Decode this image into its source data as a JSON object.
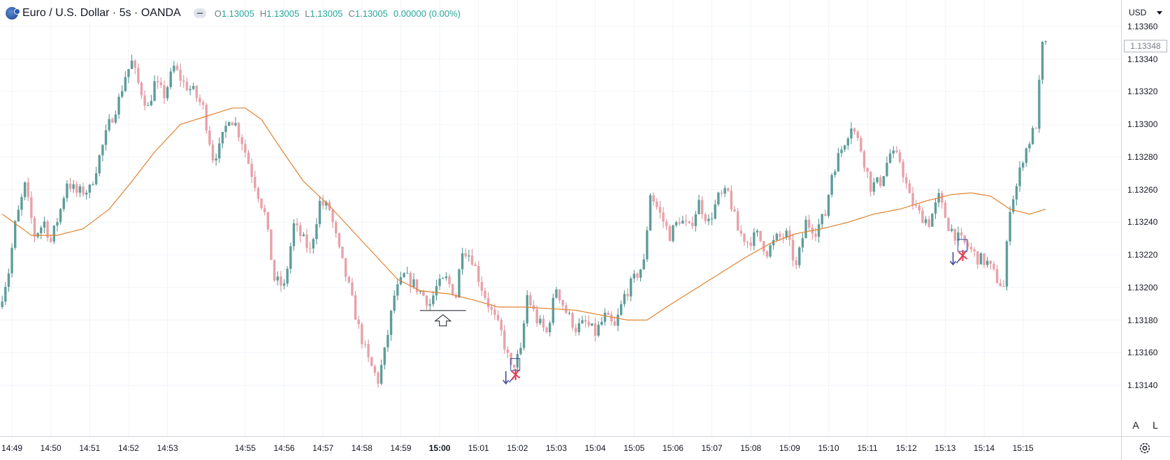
{
  "legend": {
    "title": "Euro / U.S. Dollar · 5s · OANDA",
    "o_label": "O",
    "o_value": "1.13005",
    "h_label": "H",
    "h_value": "1.13005",
    "l_label": "L",
    "l_value": "1.13005",
    "c_label": "C",
    "c_value": "1.13005",
    "change": "0.00000 (0.00%)",
    "icon": "eur-usd-flag-icon"
  },
  "currency": "USD",
  "buttons": {
    "auto": "A",
    "log": "L",
    "settings_icon": "gear-icon"
  },
  "colors": {
    "up": "#5d9d9a",
    "down": "#e8a1a8",
    "ma": "#e0822e",
    "grid": "#f0f3fa"
  },
  "price_axis": {
    "labels": [
      "1.13360",
      "1.13340",
      "1.13320",
      "1.13300",
      "1.13280",
      "1.13260",
      "1.13240",
      "1.13220",
      "1.13200",
      "1.13180",
      "1.13160",
      "1.13140"
    ],
    "last_price": "1.13348"
  },
  "time_axis": {
    "labels": [
      "14:49",
      "14:50",
      "14:51",
      "14:52",
      "14:53",
      "14:55",
      "14:56",
      "14:57",
      "14:58",
      "14:59",
      "15:00",
      "15:01",
      "15:02",
      "15:03",
      "15:04",
      "15:05",
      "15:06",
      "15:07",
      "15:08",
      "15:09",
      "15:10",
      "15:11",
      "15:12",
      "15:13",
      "15:14",
      "15:15"
    ],
    "bold": "15:00"
  },
  "chart_data": {
    "type": "candlestick",
    "symbol": "EURUSD",
    "interval": "5s",
    "ylim": [
      1.13134,
      1.13368
    ],
    "x_range": [
      "14:48:47",
      "14:15:35+60"
    ],
    "anchors": [
      [
        "14:48:45",
        1.13188
      ],
      [
        "14:49:00",
        1.1321
      ],
      [
        "14:49:10",
        1.13238
      ],
      [
        "14:49:25",
        1.13262
      ],
      [
        "14:49:40",
        1.13232
      ],
      [
        "14:49:55",
        1.1324
      ],
      [
        "14:50:05",
        1.13228
      ],
      [
        "14:50:20",
        1.13248
      ],
      [
        "14:50:30",
        1.13265
      ],
      [
        "14:50:45",
        1.13258
      ],
      [
        "14:51:05",
        1.1326
      ],
      [
        "14:51:20",
        1.1328
      ],
      [
        "14:51:35",
        1.133
      ],
      [
        "14:51:50",
        1.13315
      ],
      [
        "14:52:00",
        1.1333
      ],
      [
        "14:52:10",
        1.13338
      ],
      [
        "14:52:20",
        1.13325
      ],
      [
        "14:52:35",
        1.1331
      ],
      [
        "14:52:45",
        1.13325
      ],
      [
        "14:53:00",
        1.13318
      ],
      [
        "14:53:15",
        1.13335
      ],
      [
        "14:53:30",
        1.13325
      ],
      [
        "14:53:45",
        1.1332
      ],
      [
        "14:54:00",
        1.1331
      ],
      [
        "14:54:05",
        1.133
      ],
      [
        "14:54:15",
        1.1328
      ],
      [
        "14:54:25",
        1.13285
      ],
      [
        "14:54:40",
        1.13305
      ],
      [
        "14:54:50",
        1.133
      ],
      [
        "14:55:00",
        1.1329
      ],
      [
        "14:55:15",
        1.1327
      ],
      [
        "14:55:35",
        1.13245
      ],
      [
        "14:55:50",
        1.13205
      ],
      [
        "14:56:05",
        1.132
      ],
      [
        "14:56:20",
        1.13238
      ],
      [
        "14:56:30",
        1.13232
      ],
      [
        "14:56:45",
        1.13222
      ],
      [
        "14:57:00",
        1.13252
      ],
      [
        "14:57:15",
        1.13248
      ],
      [
        "14:57:30",
        1.13222
      ],
      [
        "14:57:45",
        1.132
      ],
      [
        "14:58:00",
        1.13175
      ],
      [
        "14:58:15",
        1.13155
      ],
      [
        "14:58:30",
        1.13143
      ],
      [
        "14:58:40",
        1.1316
      ],
      [
        "14:58:55",
        1.13195
      ],
      [
        "14:59:10",
        1.13207
      ],
      [
        "14:59:25",
        1.13202
      ],
      [
        "14:59:40",
        1.13195
      ],
      [
        "14:59:50",
        1.1319
      ],
      [
        "15:00:00",
        1.132
      ],
      [
        "15:00:15",
        1.13205
      ],
      [
        "15:00:30",
        1.13195
      ],
      [
        "15:00:40",
        1.13225
      ],
      [
        "15:00:55",
        1.13218
      ],
      [
        "15:01:10",
        1.132
      ],
      [
        "15:01:25",
        1.13185
      ],
      [
        "15:01:40",
        1.13172
      ],
      [
        "15:01:55",
        1.1315
      ],
      [
        "15:02:10",
        1.1316
      ],
      [
        "15:02:20",
        1.13195
      ],
      [
        "15:02:35",
        1.1318
      ],
      [
        "15:02:50",
        1.13172
      ],
      [
        "15:03:05",
        1.132
      ],
      [
        "15:03:20",
        1.13185
      ],
      [
        "15:03:35",
        1.13175
      ],
      [
        "15:03:50",
        1.13178
      ],
      [
        "15:04:05",
        1.13172
      ],
      [
        "15:04:20",
        1.13182
      ],
      [
        "15:04:35",
        1.13175
      ],
      [
        "15:04:50",
        1.13195
      ],
      [
        "15:05:05",
        1.13205
      ],
      [
        "15:05:20",
        1.13215
      ],
      [
        "15:05:30",
        1.13258
      ],
      [
        "15:05:45",
        1.13245
      ],
      [
        "15:06:00",
        1.13232
      ],
      [
        "15:06:15",
        1.13242
      ],
      [
        "15:06:30",
        1.13236
      ],
      [
        "15:06:45",
        1.13252
      ],
      [
        "15:07:00",
        1.1324
      ],
      [
        "15:07:15",
        1.13255
      ],
      [
        "15:07:30",
        1.13258
      ],
      [
        "15:07:45",
        1.13235
      ],
      [
        "15:08:00",
        1.13228
      ],
      [
        "15:08:15",
        1.13232
      ],
      [
        "15:08:30",
        1.13222
      ],
      [
        "15:08:45",
        1.1323
      ],
      [
        "15:09:00",
        1.13232
      ],
      [
        "15:09:15",
        1.13212
      ],
      [
        "15:09:30",
        1.1324
      ],
      [
        "15:09:45",
        1.13235
      ],
      [
        "15:10:00",
        1.13245
      ],
      [
        "15:10:10",
        1.1327
      ],
      [
        "15:10:25",
        1.13285
      ],
      [
        "15:10:40",
        1.133
      ],
      [
        "15:10:55",
        1.13285
      ],
      [
        "15:11:10",
        1.13262
      ],
      [
        "15:11:25",
        1.13265
      ],
      [
        "15:11:40",
        1.13282
      ],
      [
        "15:11:55",
        1.13278
      ],
      [
        "15:12:10",
        1.13255
      ],
      [
        "15:12:25",
        1.13245
      ],
      [
        "15:12:40",
        1.1324
      ],
      [
        "15:12:55",
        1.13255
      ],
      [
        "15:13:10",
        1.13238
      ],
      [
        "15:13:25",
        1.1323
      ],
      [
        "15:13:40",
        1.13225
      ],
      [
        "15:13:55",
        1.13218
      ],
      [
        "15:14:10",
        1.13215
      ],
      [
        "15:14:25",
        1.13205
      ],
      [
        "15:14:35",
        1.132
      ],
      [
        "15:14:45",
        1.1325
      ],
      [
        "15:14:55",
        1.13262
      ],
      [
        "15:15:05",
        1.1328
      ],
      [
        "15:15:15",
        1.1329
      ],
      [
        "15:15:25",
        1.133
      ],
      [
        "15:15:35",
        1.13348
      ]
    ],
    "ma_anchors": [
      [
        "14:48:45",
        1.13245
      ],
      [
        "14:49:30",
        1.13232
      ],
      [
        "14:50:10",
        1.13232
      ],
      [
        "14:50:50",
        1.13236
      ],
      [
        "14:51:30",
        1.13248
      ],
      [
        "14:52:05",
        1.13265
      ],
      [
        "14:52:40",
        1.13283
      ],
      [
        "14:53:20",
        1.133
      ],
      [
        "14:54:00",
        1.13305
      ],
      [
        "14:54:40",
        1.1331
      ],
      [
        "14:55:00",
        1.1331
      ],
      [
        "14:55:25",
        1.13303
      ],
      [
        "14:55:55",
        1.13285
      ],
      [
        "14:56:30",
        1.13265
      ],
      [
        "14:57:10",
        1.1325
      ],
      [
        "14:57:45",
        1.13235
      ],
      [
        "14:58:20",
        1.1322
      ],
      [
        "14:58:55",
        1.13205
      ],
      [
        "14:59:30",
        1.13198
      ],
      [
        "15:00:15",
        1.13196
      ],
      [
        "15:00:55",
        1.13192
      ],
      [
        "15:01:30",
        1.13188
      ],
      [
        "15:02:10",
        1.13188
      ],
      [
        "15:02:50",
        1.13187
      ],
      [
        "15:03:30",
        1.13186
      ],
      [
        "15:04:10",
        1.13183
      ],
      [
        "15:04:50",
        1.1318
      ],
      [
        "15:05:20",
        1.1318
      ],
      [
        "15:05:50",
        1.13188
      ],
      [
        "15:06:30",
        1.13198
      ],
      [
        "15:07:10",
        1.13208
      ],
      [
        "15:07:50",
        1.13218
      ],
      [
        "15:08:30",
        1.13227
      ],
      [
        "15:09:10",
        1.13233
      ],
      [
        "15:09:50",
        1.13236
      ],
      [
        "15:10:30",
        1.1324
      ],
      [
        "15:11:10",
        1.13245
      ],
      [
        "15:11:50",
        1.13248
      ],
      [
        "15:12:30",
        1.13253
      ],
      [
        "15:13:10",
        1.13257
      ],
      [
        "15:13:40",
        1.13258
      ],
      [
        "15:14:10",
        1.13256
      ],
      [
        "15:14:40",
        1.13248
      ],
      [
        "15:15:10",
        1.13245
      ],
      [
        "15:15:35",
        1.13248
      ]
    ],
    "markers": [
      {
        "type": "arrow-up-line",
        "time": "15:00:05",
        "price": 1.13185
      },
      {
        "type": "sell-x",
        "time": "15:01:55",
        "price": 1.13147
      },
      {
        "type": "sell-x",
        "time": "15:13:25",
        "price": 1.1322
      }
    ]
  }
}
